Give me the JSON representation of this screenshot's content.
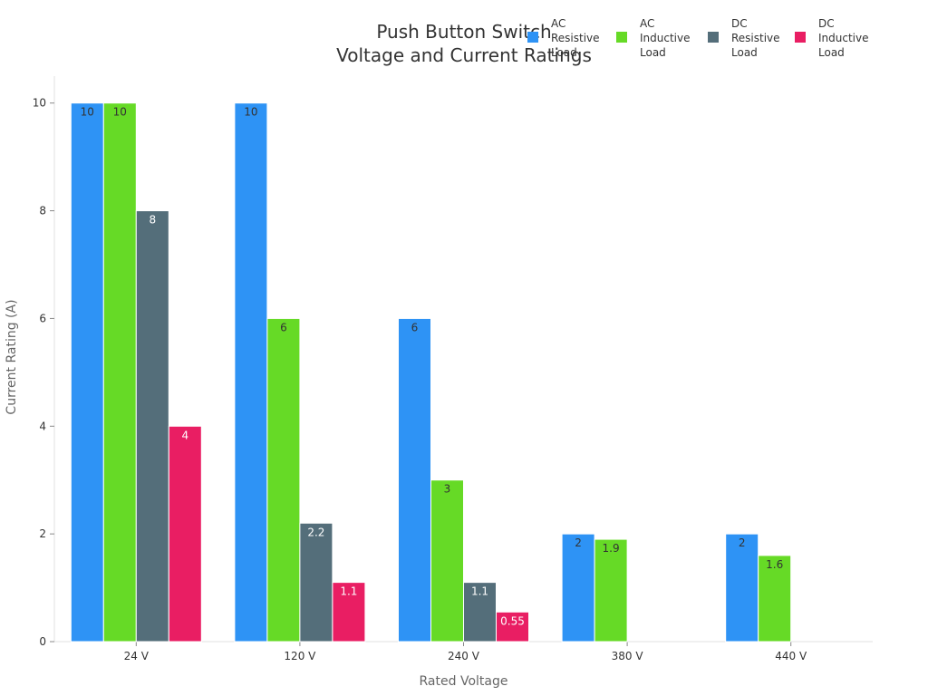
{
  "chart_data": {
    "type": "bar",
    "title_lines": [
      "Push Button Switch",
      "Voltage and Current Ratings"
    ],
    "xlabel": "Rated Voltage",
    "ylabel": "Current Rating (A)",
    "categories": [
      "24 V",
      "120 V",
      "240 V",
      "380 V",
      "440 V"
    ],
    "ylim": [
      0,
      10.5
    ],
    "yticks": [
      0,
      2,
      4,
      6,
      8,
      10
    ],
    "grid": false,
    "legend_position": "top-right",
    "series": [
      {
        "name": "AC Resistive Load",
        "legend_lines": [
          "AC",
          "Resistive",
          "Load"
        ],
        "color": "#2E93F5",
        "label_color": "#333333",
        "values": [
          10,
          10,
          6,
          2,
          2
        ]
      },
      {
        "name": "AC Inductive Load",
        "legend_lines": [
          "AC",
          "Inductive",
          "Load"
        ],
        "color": "#66DA26",
        "label_color": "#333333",
        "values": [
          10,
          6,
          3,
          1.9,
          1.6
        ]
      },
      {
        "name": "DC Resistive Load",
        "legend_lines": [
          "DC",
          "Resistive",
          "Load"
        ],
        "color": "#546E7A",
        "label_color": "#ffffff",
        "values": [
          8,
          2.2,
          1.1,
          null,
          null
        ]
      },
      {
        "name": "DC Inductive Load",
        "legend_lines": [
          "DC",
          "Inductive",
          "Load"
        ],
        "color": "#E91E63",
        "label_color": "#ffffff",
        "values": [
          4,
          1.1,
          0.55,
          null,
          null
        ]
      }
    ]
  }
}
